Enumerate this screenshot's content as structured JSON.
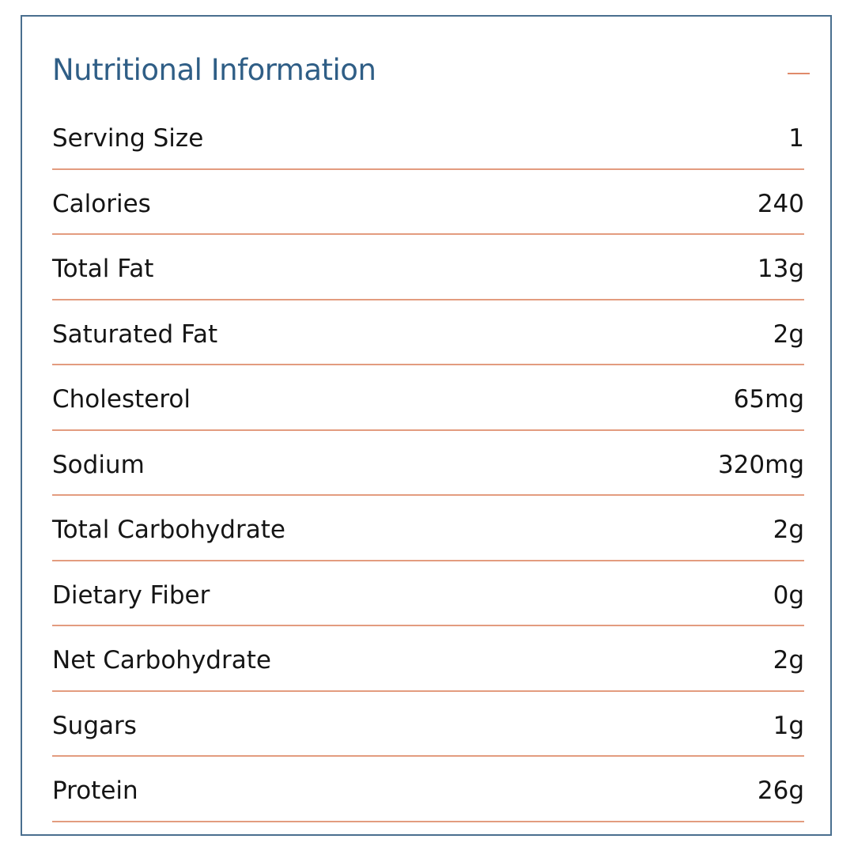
{
  "panel": {
    "title": "Nutritional Information",
    "toggle_icon": "minus-icon",
    "accent_color": "#e08a6a",
    "title_color": "#2f5e86"
  },
  "rows": [
    {
      "label": "Serving Size",
      "value": "1"
    },
    {
      "label": "Calories",
      "value": "240"
    },
    {
      "label": "Total Fat",
      "value": "13g"
    },
    {
      "label": "Saturated Fat",
      "value": "2g"
    },
    {
      "label": "Cholesterol",
      "value": "65mg"
    },
    {
      "label": "Sodium",
      "value": "320mg"
    },
    {
      "label": "Total Carbohydrate",
      "value": "2g"
    },
    {
      "label": "Dietary Fiber",
      "value": "0g"
    },
    {
      "label": "Net Carbohydrate",
      "value": "2g"
    },
    {
      "label": "Sugars",
      "value": "1g"
    },
    {
      "label": "Protein",
      "value": "26g"
    }
  ]
}
